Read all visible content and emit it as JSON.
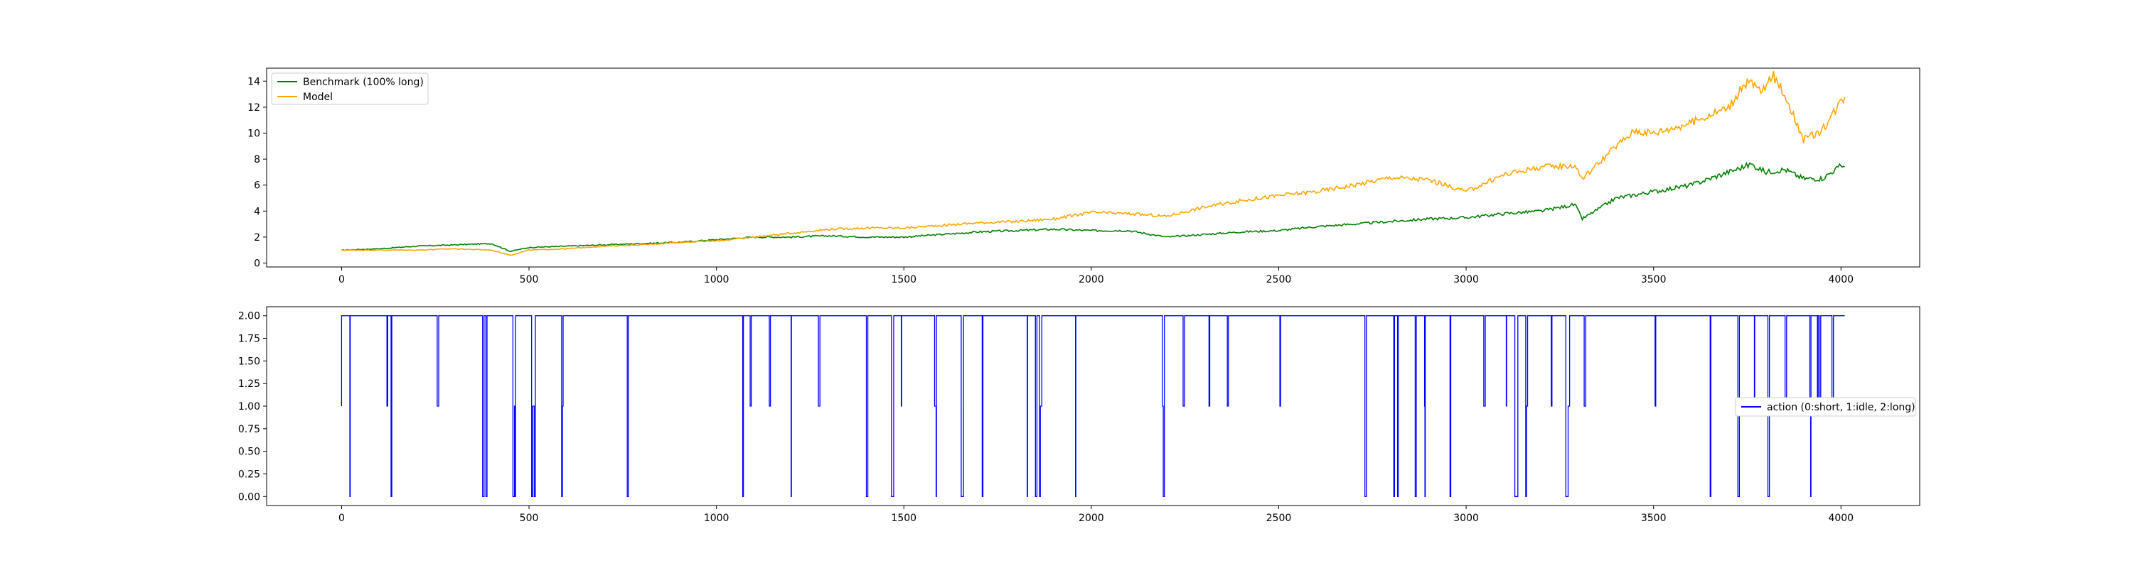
{
  "chart_data": [
    {
      "type": "line",
      "title": "",
      "xlabel": "",
      "ylabel": "",
      "xlim": [
        -200,
        4210
      ],
      "ylim": [
        -0.3,
        15
      ],
      "xticks": [
        0,
        500,
        1000,
        1500,
        2000,
        2500,
        3000,
        3500,
        4000
      ],
      "yticks": [
        0,
        2,
        4,
        6,
        8,
        10,
        12,
        14
      ],
      "grid": false,
      "legend_position": "upper-left",
      "series": [
        {
          "name": "Benchmark (100% long)",
          "color": "#008000",
          "x": [
            0,
            100,
            200,
            300,
            400,
            450,
            500,
            600,
            700,
            800,
            900,
            1000,
            1100,
            1200,
            1300,
            1400,
            1500,
            1600,
            1700,
            1800,
            1900,
            2000,
            2100,
            2200,
            2300,
            2400,
            2500,
            2600,
            2700,
            2800,
            2900,
            3000,
            3100,
            3200,
            3290,
            3310,
            3400,
            3500,
            3600,
            3700,
            3760,
            3800,
            3850,
            3900,
            3950,
            4000,
            4010
          ],
          "y": [
            1.0,
            1.1,
            1.3,
            1.4,
            1.5,
            0.9,
            1.2,
            1.3,
            1.4,
            1.5,
            1.6,
            1.8,
            2.0,
            2.0,
            2.1,
            2.0,
            2.0,
            2.2,
            2.4,
            2.5,
            2.6,
            2.5,
            2.5,
            2.0,
            2.2,
            2.4,
            2.5,
            2.8,
            3.0,
            3.2,
            3.4,
            3.5,
            3.8,
            4.0,
            4.5,
            3.4,
            5.0,
            5.5,
            6.0,
            7.0,
            7.6,
            7.0,
            7.2,
            6.5,
            6.5,
            7.5,
            7.4
          ]
        },
        {
          "name": "Model",
          "color": "#ffa500",
          "x": [
            0,
            100,
            200,
            300,
            400,
            450,
            500,
            600,
            700,
            800,
            900,
            1000,
            1100,
            1200,
            1300,
            1400,
            1500,
            1600,
            1700,
            1800,
            1900,
            2000,
            2100,
            2200,
            2300,
            2400,
            2500,
            2600,
            2700,
            2800,
            2900,
            3000,
            3100,
            3200,
            3290,
            3310,
            3400,
            3450,
            3500,
            3600,
            3700,
            3750,
            3790,
            3820,
            3850,
            3900,
            3950,
            4000,
            4010
          ],
          "y": [
            1.0,
            1.0,
            1.0,
            1.1,
            1.0,
            0.6,
            1.0,
            1.1,
            1.3,
            1.4,
            1.6,
            1.7,
            2.0,
            2.3,
            2.6,
            2.7,
            2.7,
            2.9,
            3.1,
            3.2,
            3.4,
            3.9,
            3.8,
            3.6,
            4.3,
            4.8,
            5.2,
            5.5,
            6.0,
            6.6,
            6.4,
            5.5,
            6.8,
            7.4,
            7.5,
            6.5,
            9.0,
            10.2,
            10.0,
            10.8,
            12.0,
            14.0,
            13.2,
            14.4,
            13.0,
            9.5,
            10.2,
            12.5,
            12.8
          ]
        }
      ]
    },
    {
      "type": "line",
      "title": "",
      "xlabel": "",
      "ylabel": "",
      "xlim": [
        -200,
        4210
      ],
      "ylim": [
        -0.1,
        2.1
      ],
      "xticks": [
        0,
        500,
        1000,
        1500,
        2000,
        2500,
        3000,
        3500,
        4000
      ],
      "yticks": [
        "0.00",
        "0.25",
        "0.50",
        "0.75",
        "1.00",
        "1.25",
        "1.50",
        "1.75",
        "2.00"
      ],
      "grid": false,
      "legend_position": "center-right",
      "series": [
        {
          "name": "action (0:short, 1:idle, 2:long)",
          "color": "#0000ff",
          "x_start": 0,
          "x_end": 4010,
          "levels": [
            0,
            1,
            2
          ],
          "dominant_level": 2
        }
      ]
    }
  ]
}
